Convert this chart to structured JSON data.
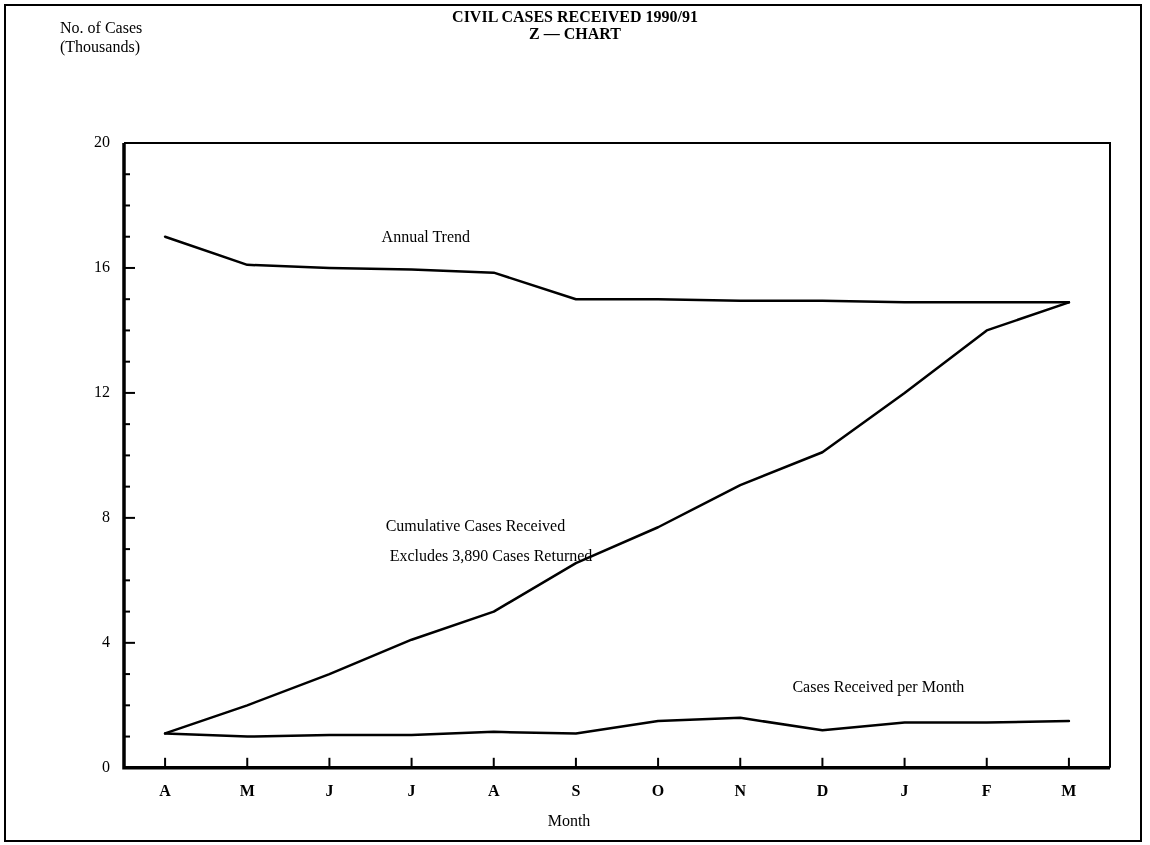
{
  "chart_data": {
    "type": "line",
    "title": "CIVIL CASES RECEIVED 1990/91\nZ — CHART",
    "xlabel": "Month",
    "ylabel": "No. of Cases\n(Thousands)",
    "categories": [
      "A",
      "M",
      "J",
      "J",
      "A",
      "S",
      "O",
      "N",
      "D",
      "J",
      "F",
      "M"
    ],
    "series": [
      {
        "name": "Annual Trend",
        "color": "#000000",
        "values": [
          17,
          16.1,
          16,
          15.95,
          15.85,
          15,
          15,
          14.95,
          14.95,
          14.9,
          14.9,
          14.9
        ]
      },
      {
        "name": "Cumulative Cases Received",
        "color": "#000000",
        "values": [
          1.1,
          2,
          3,
          4.1,
          5,
          6.55,
          7.7,
          9.05,
          10.1,
          12,
          14,
          14.9
        ]
      },
      {
        "name": "Cases Received per Month",
        "color": "#000000",
        "values": [
          1.1,
          1,
          1.05,
          1.05,
          1.15,
          1.1,
          1.5,
          1.6,
          1.2,
          1.45,
          1.45,
          1.5
        ]
      }
    ],
    "annotations": [
      "Excludes 3,890 Cases Returned"
    ],
    "ylim": [
      0,
      20
    ],
    "yticks": [
      0,
      {
        "value": 1,
        "label": null
      },
      {
        "value": 2,
        "label": null
      },
      {
        "value": 3,
        "label": null
      },
      4,
      {
        "value": 5,
        "label": null
      },
      {
        "value": 6,
        "label": null
      },
      {
        "value": 7,
        "label": null
      },
      8,
      {
        "value": 9,
        "label": null
      },
      {
        "value": 10,
        "label": null
      },
      {
        "value": 11,
        "label": null
      },
      12,
      {
        "value": 13,
        "label": null
      },
      {
        "value": 14,
        "label": null
      },
      {
        "value": 15,
        "label": null
      },
      16,
      {
        "value": 17,
        "label": null
      },
      {
        "value": 18,
        "label": null
      },
      {
        "value": 19,
        "label": null
      },
      20
    ],
    "grid": false,
    "legend": false,
    "marker": "none",
    "line_style": "solid"
  }
}
